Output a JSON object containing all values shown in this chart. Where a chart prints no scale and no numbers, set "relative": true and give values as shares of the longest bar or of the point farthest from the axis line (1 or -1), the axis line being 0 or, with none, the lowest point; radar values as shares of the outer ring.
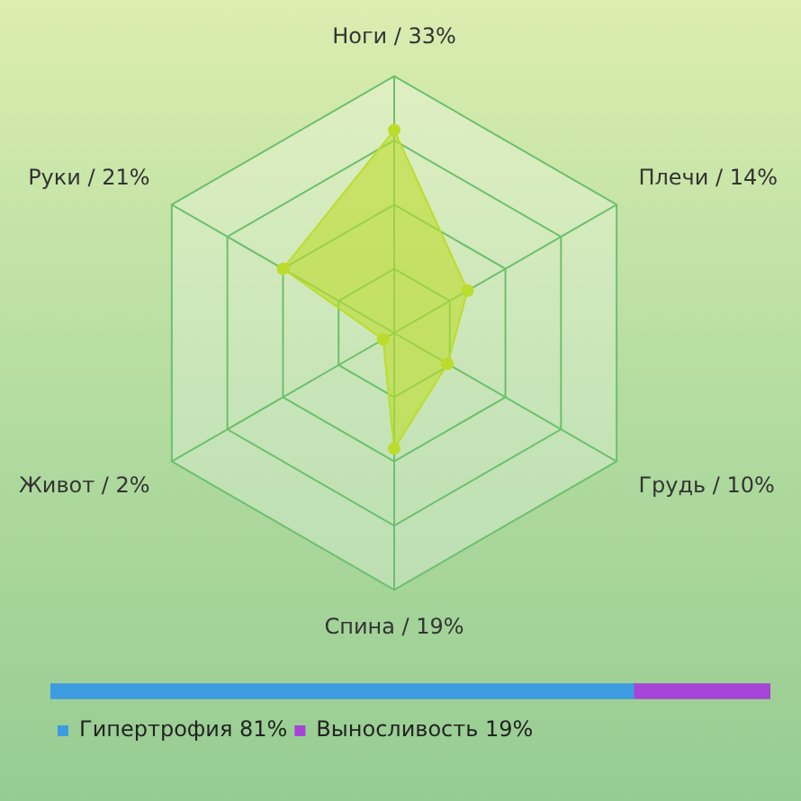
{
  "chart_data": [
    {
      "type": "radar",
      "relative": true,
      "categories": [
        "Ноги / 33%",
        "Плечи / 14%",
        "Грудь / 10%",
        "Спина / 19%",
        "Живот / 2%",
        "Руки / 21%"
      ],
      "series": [
        {
          "color": "#bcdc2c",
          "values": [
            0.79,
            0.33,
            0.24,
            0.45,
            0.05,
            0.5
          ]
        }
      ],
      "marker": "circle",
      "legend": false
    },
    {
      "type": "bar",
      "orientation": "horizontal",
      "stacked": true,
      "categories": [
        null
      ],
      "relative": true,
      "legend": "bottom",
      "series": [
        {
          "name": "Гипертрофия 81%",
          "color": "#3d9be0",
          "values": [
            0.81
          ]
        },
        {
          "name": "Выносливость 19%",
          "color": "#a544d6",
          "values": [
            0.19
          ]
        }
      ]
    }
  ]
}
